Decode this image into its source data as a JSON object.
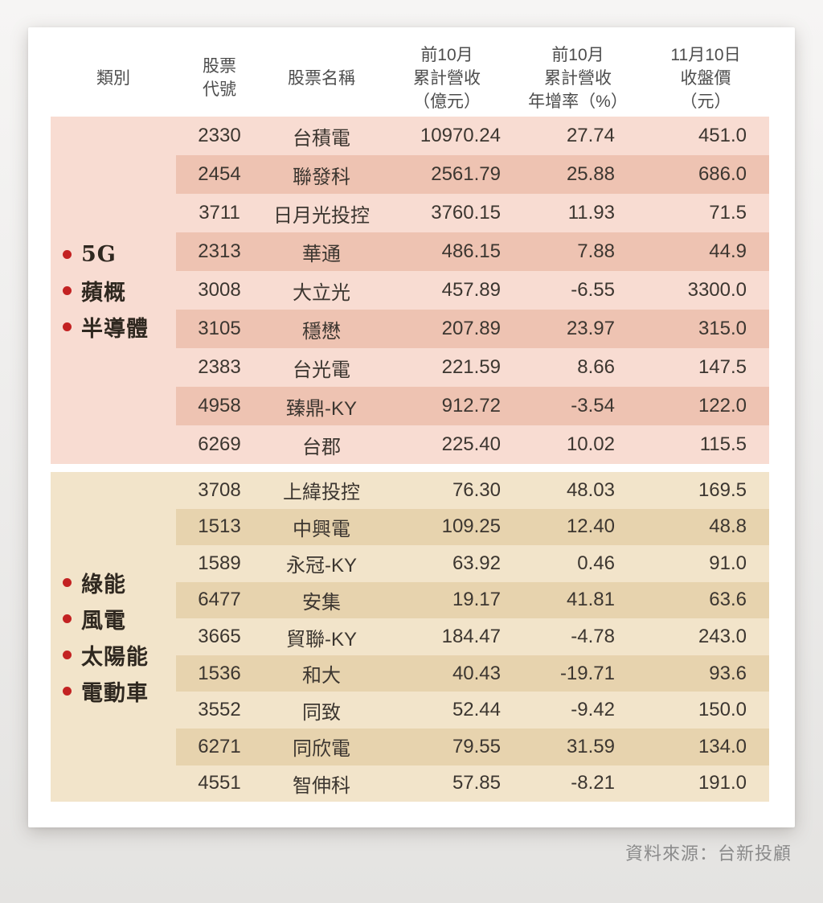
{
  "chart_data": {
    "type": "table",
    "columns": [
      "類別",
      "股票\n代號",
      "股票名稱",
      "前10月\n累計營收\n（億元）",
      "前10月\n累計營收\n年增率（%）",
      "11月10日\n收盤價\n（元）"
    ],
    "groups": [
      {
        "name": "5G / 蘋概 / 半導體",
        "categories": [
          "5G",
          "蘋概",
          "半導體"
        ],
        "rows": [
          [
            "2330",
            "台積電",
            "10970.24",
            "27.74",
            "451.0"
          ],
          [
            "2454",
            "聯發科",
            "2561.79",
            "25.88",
            "686.0"
          ],
          [
            "3711",
            "日月光投控",
            "3760.15",
            "11.93",
            "71.5"
          ],
          [
            "2313",
            "華通",
            "486.15",
            "7.88",
            "44.9"
          ],
          [
            "3008",
            "大立光",
            "457.89",
            "-6.55",
            "3300.0"
          ],
          [
            "3105",
            "穩懋",
            "207.89",
            "23.97",
            "315.0"
          ],
          [
            "2383",
            "台光電",
            "221.59",
            "8.66",
            "147.5"
          ],
          [
            "4958",
            "臻鼎-KY",
            "912.72",
            "-3.54",
            "122.0"
          ],
          [
            "6269",
            "台郡",
            "225.40",
            "10.02",
            "115.5"
          ]
        ]
      },
      {
        "name": "綠能 / 風電 / 太陽能 / 電動車",
        "categories": [
          "綠能",
          "風電",
          "太陽能",
          "電動車"
        ],
        "rows": [
          [
            "3708",
            "上緯投控",
            "76.30",
            "48.03",
            "169.5"
          ],
          [
            "1513",
            "中興電",
            "109.25",
            "12.40",
            "48.8"
          ],
          [
            "1589",
            "永冠-KY",
            "63.92",
            "0.46",
            "91.0"
          ],
          [
            "6477",
            "安集",
            "19.17",
            "41.81",
            "63.6"
          ],
          [
            "3665",
            "貿聯-KY",
            "184.47",
            "-4.78",
            "243.0"
          ],
          [
            "1536",
            "和大",
            "40.43",
            "-19.71",
            "93.6"
          ],
          [
            "3552",
            "同致",
            "52.44",
            "-9.42",
            "150.0"
          ],
          [
            "6271",
            "同欣電",
            "79.55",
            "31.59",
            "134.0"
          ],
          [
            "4551",
            "智伸科",
            "57.85",
            "-8.21",
            "191.0"
          ]
        ]
      }
    ],
    "source": "資料來源：台新投顧"
  },
  "colors": {
    "pink_base": "#f8dcd2",
    "pink_stripe": "#eec3b2",
    "tan_base": "#f2e4ca",
    "tan_stripe": "#e7d3ae",
    "bullet": "#c32222",
    "card_bg": "#ffffff",
    "text_dark": "#3c3630",
    "header_text": "#4d4d4d",
    "source_text": "#8b8b8b"
  }
}
